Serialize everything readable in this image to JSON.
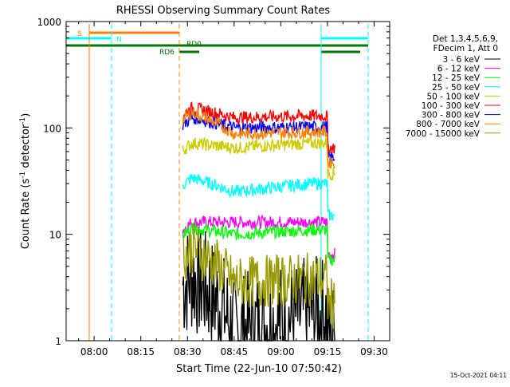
{
  "chart_data": {
    "type": "line",
    "title": "RHESSI Observing Summary Count Rates",
    "xlabel": "Start Time (22-Jun-10 07:50:42)",
    "ylabel_main": "Count Rate (s",
    "ylabel_sup1": "-1",
    "ylabel_mid": " detector",
    "ylabel_sup2": "-1",
    "ylabel_end": ")",
    "yscale": "log",
    "ylim": [
      1,
      1000
    ],
    "x_minutes_range": [
      0,
      104
    ],
    "x_ticks": [
      {
        "label": "08:00",
        "minute": 9
      },
      {
        "label": "08:15",
        "minute": 24
      },
      {
        "label": "08:30",
        "minute": 39
      },
      {
        "label": "08:45",
        "minute": 54
      },
      {
        "label": "09:00",
        "minute": 69
      },
      {
        "label": "09:15",
        "minute": 84
      },
      {
        "label": "09:30",
        "minute": 99
      }
    ],
    "y_ticks": [
      {
        "label": "1",
        "value": 1
      },
      {
        "label": "10",
        "value": 10
      },
      {
        "label": "100",
        "value": 100
      },
      {
        "label": "1000",
        "value": 1000
      }
    ],
    "legend_header": [
      "Det 1,3,4,5,6,9,",
      "FDecim 1, Att 0"
    ],
    "series": [
      {
        "name": "3 - 6 keV",
        "color": "#000000",
        "values_by_phase": {
          "early": 4.0,
          "min": 1.2,
          "late": 1.8,
          "tail": 2.2
        }
      },
      {
        "name": "6 - 12 keV",
        "color": "#ff00ff",
        "values_by_phase": {
          "early": 13.0,
          "min": 13.0,
          "late": 13.0,
          "tail": 13.0
        }
      },
      {
        "name": "12 - 25 keV",
        "color": "#00ff00",
        "values_by_phase": {
          "early": 11.5,
          "min": 10.0,
          "late": 11.0,
          "tail": 11.5
        }
      },
      {
        "name": "25 - 50 keV",
        "color": "#00ffff",
        "values_by_phase": {
          "early": 34.0,
          "min": 25.0,
          "late": 30.0,
          "tail": 30.0
        }
      },
      {
        "name": "50 - 100 keV",
        "color": "#cccc00",
        "values_by_phase": {
          "early": 72.0,
          "min": 65.0,
          "late": 72.0,
          "tail": 74.0
        }
      },
      {
        "name": "100 - 300 keV",
        "color": "#ff0000",
        "values_by_phase": {
          "early": 155.0,
          "min": 125.0,
          "late": 130.0,
          "tail": 130.0
        }
      },
      {
        "name": "300 - 800 keV",
        "color": "#0000ff",
        "values_by_phase": {
          "early": 125.0,
          "min": 100.0,
          "late": 102.0,
          "tail": 105.0
        }
      },
      {
        "name": "800 - 7000 keV",
        "color": "#ff8000",
        "values_by_phase": {
          "early": 140.0,
          "min": 88.0,
          "late": 92.0,
          "tail": 95.0
        }
      },
      {
        "name": "7000 - 15000 keV",
        "color": "#999900",
        "values_by_phase": {
          "early": 7.5,
          "min": 3.5,
          "late": 3.8,
          "tail": 4.5
        }
      }
    ],
    "annotations": {
      "saa_label": "S",
      "night_label": "N",
      "rd0_label": "RD0",
      "rd6_label": "RD6"
    },
    "footer_date": "15-Oct-2021 04:11",
    "grid": false,
    "legend_placement": "right"
  }
}
